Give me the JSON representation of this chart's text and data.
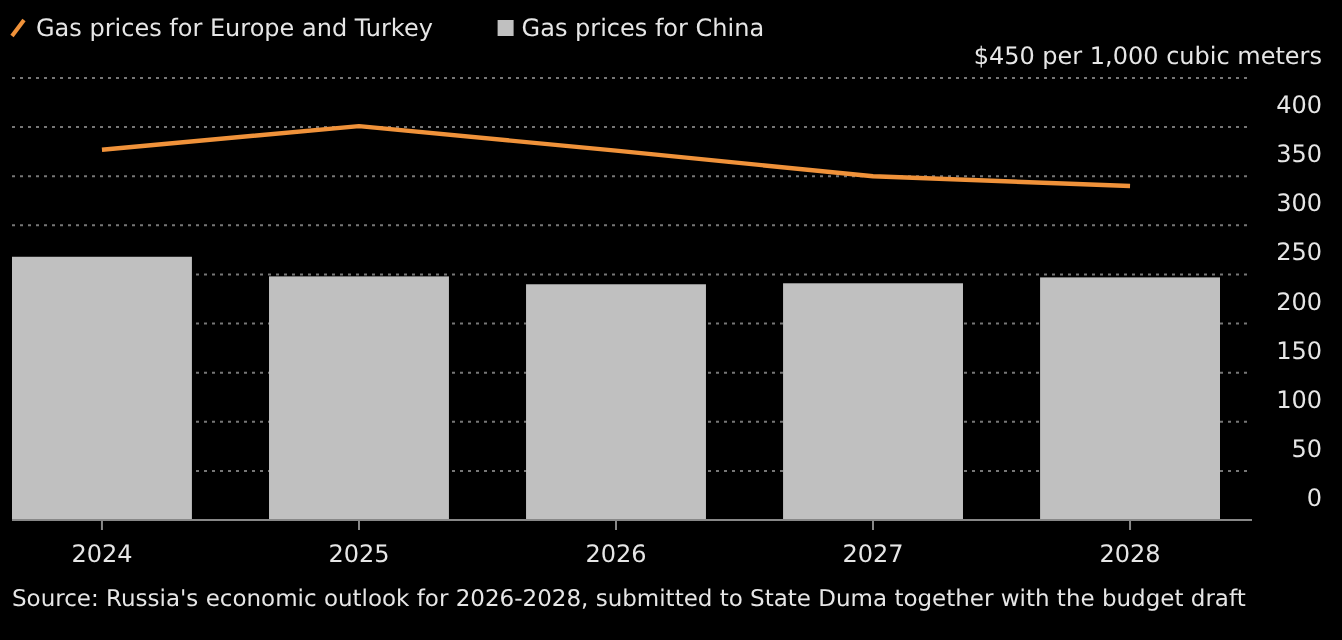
{
  "chart_data": {
    "type": "bar",
    "categories": [
      "2024",
      "2025",
      "2026",
      "2027",
      "2028"
    ],
    "series": [
      {
        "name": "Gas prices for Europe and Turkey",
        "type": "line",
        "color": "#f0923a",
        "values": [
          377,
          401,
          376,
          350,
          340
        ]
      },
      {
        "name": "Gas prices for China",
        "color": "#c0c0c0",
        "values": [
          268,
          248,
          240,
          241,
          247
        ]
      }
    ],
    "ylim": [
      0,
      450
    ],
    "yticks": [
      0,
      50,
      100,
      150,
      200,
      250,
      300,
      350,
      400,
      {
        "value": 450,
        "label": "$450 per 1,000 cubic meters"
      }
    ],
    "grid": "y",
    "legend": "top left",
    "line_style": "solid",
    "marker": "none",
    "annotations": [
      "Source: Russia's economic outlook for 2026-2028, submitted to State Duma together with the budget draft"
    ]
  }
}
